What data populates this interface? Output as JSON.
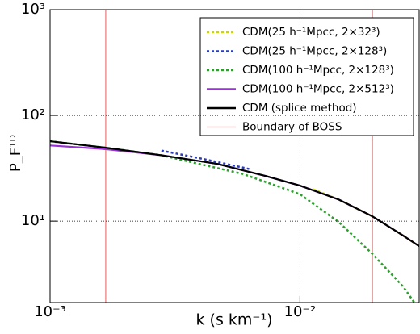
{
  "chart_data": {
    "type": "line",
    "xlabel": "k (s km⁻¹)",
    "ylabel": "P_F¹ᴰ",
    "xscale": "log",
    "yscale": "log",
    "xlim": [
      0.001,
      0.03
    ],
    "ylim": [
      1.7,
      1000
    ],
    "xticks": [
      {
        "value": 0.001,
        "label": "10⁻³"
      },
      {
        "value": 0.01,
        "label": "10⁻²"
      }
    ],
    "yticks": [
      {
        "value": 10,
        "label": "10¹"
      },
      {
        "value": 100,
        "label": "10²"
      },
      {
        "value": 1000,
        "label": "10³"
      }
    ],
    "grid": true,
    "legend": "upper right",
    "series": [
      {
        "name": "CDM(25 h⁻¹Mpcc, 2×32³)",
        "color": "#c8d21e",
        "style": "dashed",
        "x": [
          0.0113,
          0.0143,
          0.0195,
          0.0259,
          0.03
        ],
        "values": [
          20,
          16,
          11.1,
          7.3,
          5.8
        ]
      },
      {
        "name": "CDM(25 h⁻¹Mpcc, 2×128³)",
        "color": "#2b3bb8",
        "style": "dashed",
        "x": [
          0.00279,
          0.00404,
          0.00633
        ],
        "values": [
          46.5,
          39,
          31
        ]
      },
      {
        "name": "CDM(100 h⁻¹Mpcc, 2×128³)",
        "color": "#2ca02c",
        "style": "dashed",
        "x": [
          0.001,
          0.00167,
          0.00279,
          0.0059,
          0.01,
          0.0143,
          0.0195,
          0.0259,
          0.0287
        ],
        "values": [
          57,
          49.5,
          42,
          28,
          18,
          9.8,
          4.9,
          2.4,
          1.7
        ]
      },
      {
        "name": "CDM(100 h⁻¹Mpcc, 2×512³)",
        "color": "#9b30d9",
        "style": "solid",
        "x": [
          0.001,
          0.00167,
          0.00279,
          0.00468,
          0.0073,
          0.01,
          0.0143,
          0.0195,
          0.0259,
          0.03
        ],
        "values": [
          52,
          48,
          42,
          34.8,
          26.7,
          21.7,
          16,
          11.1,
          7.3,
          5.8
        ]
      },
      {
        "name": "CDM (splice method)",
        "color": "#000000",
        "style": "solid",
        "x": [
          0.001,
          0.00167,
          0.00279,
          0.00468,
          0.0073,
          0.01,
          0.0143,
          0.0195,
          0.0259,
          0.03
        ],
        "values": [
          57,
          49.5,
          42,
          34.8,
          26.7,
          21.7,
          16,
          11.1,
          7.3,
          5.8
        ]
      }
    ],
    "boundary": {
      "name": "Boundary of BOSS",
      "color": "#f08080",
      "x": [
        0.00167,
        0.0195
      ]
    }
  }
}
